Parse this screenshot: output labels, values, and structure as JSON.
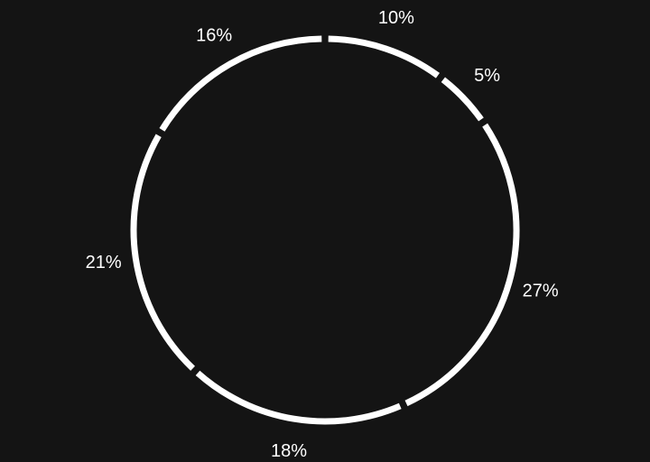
{
  "chart_data": {
    "type": "pie",
    "style": "ring-outline",
    "categories": [
      "",
      "",
      "",
      "",
      "",
      ""
    ],
    "values": [
      10,
      5,
      27,
      18,
      21,
      16
    ],
    "labels": [
      "10%",
      "5%",
      "27%",
      "18%",
      "21%",
      "16%"
    ],
    "title": "",
    "legend": "none",
    "colors": {
      "background": "#141414",
      "ring": "#ffffff",
      "label": "#ffffff"
    }
  }
}
